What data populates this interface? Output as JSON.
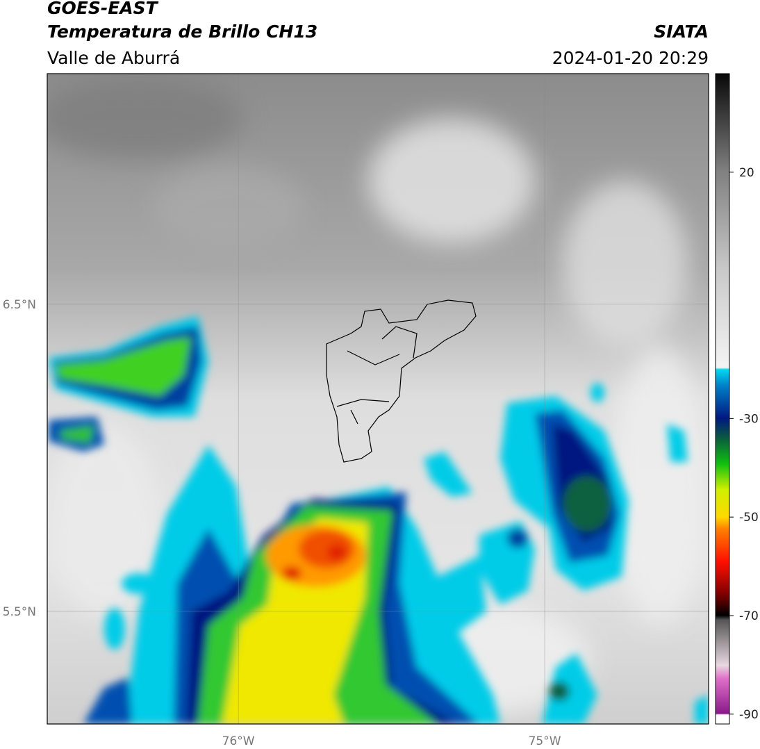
{
  "header": {
    "title": "GOES-EAST",
    "subtitle": "Temperatura de Brillo CH13",
    "region": "Valle de Aburrá",
    "source": "SIATA",
    "datetime": "2024-01-20 20:29"
  },
  "map": {
    "xlim": [
      -76.624,
      -74.465
    ],
    "ylim": [
      5.133,
      7.251
    ],
    "xticks": [
      {
        "value": -76,
        "label": "76°W"
      },
      {
        "value": -75,
        "label": "75°W"
      }
    ],
    "yticks": [
      {
        "value": 6.5,
        "label": "6.5°N"
      },
      {
        "value": 5.5,
        "label": "5.5°N"
      }
    ],
    "grid": true
  },
  "colorbar": {
    "lim": [
      -92,
      40
    ],
    "ticks": [
      20,
      -30,
      -50,
      -70,
      -90
    ]
  }
}
